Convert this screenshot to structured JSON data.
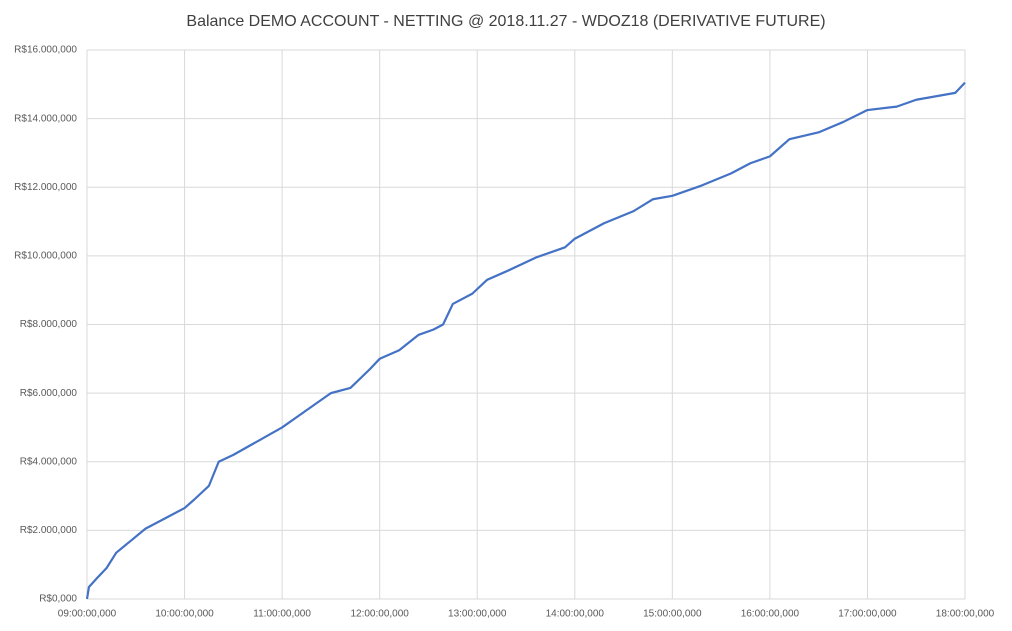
{
  "chart_data": {
    "type": "line",
    "title": "Balance DEMO ACCOUNT - NETTING @ 2018.11.27 - WDOZ18 (DERIVATIVE FUTURE)",
    "x": [
      9.0,
      9.02,
      9.1,
      9.2,
      9.3,
      9.45,
      9.6,
      9.8,
      10.0,
      10.1,
      10.25,
      10.35,
      10.5,
      10.75,
      11.0,
      11.25,
      11.5,
      11.7,
      11.9,
      12.0,
      12.2,
      12.4,
      12.55,
      12.65,
      12.75,
      12.95,
      13.1,
      13.3,
      13.6,
      13.9,
      14.0,
      14.3,
      14.6,
      14.8,
      15.0,
      15.3,
      15.6,
      15.8,
      16.0,
      16.2,
      16.5,
      16.75,
      17.0,
      17.3,
      17.5,
      17.9,
      18.0
    ],
    "series": [
      {
        "name": "Balance",
        "color": "#4472c4",
        "values": [
          0,
          350000,
          600000,
          900000,
          1350000,
          1700000,
          2050000,
          2350000,
          2650000,
          2900000,
          3300000,
          4000000,
          4200000,
          4600000,
          5000000,
          5500000,
          6000000,
          6150000,
          6700000,
          7000000,
          7250000,
          7700000,
          7850000,
          8000000,
          8600000,
          8900000,
          9300000,
          9550000,
          9950000,
          10250000,
          10500000,
          10950000,
          11300000,
          11650000,
          11750000,
          12050000,
          12400000,
          12700000,
          12900000,
          13400000,
          13600000,
          13900000,
          14250000,
          14350000,
          14550000,
          14750000,
          15050000
        ]
      }
    ],
    "xlim": [
      9,
      18
    ],
    "xticks": [
      {
        "value": 9,
        "label": "09:00:00,000"
      },
      {
        "value": 10,
        "label": "10:00:00,000"
      },
      {
        "value": 11,
        "label": "11:00:00,000"
      },
      {
        "value": 12,
        "label": "12:00:00,000"
      },
      {
        "value": 13,
        "label": "13:00:00,000"
      },
      {
        "value": 14,
        "label": "14:00:00,000"
      },
      {
        "value": 15,
        "label": "15:00:00,000"
      },
      {
        "value": 16,
        "label": "16:00:00,000"
      },
      {
        "value": 17,
        "label": "17:00:00,000"
      },
      {
        "value": 18,
        "label": "18:00:00,000"
      }
    ],
    "ylim": [
      0,
      16000000
    ],
    "yticks": [
      {
        "value": 0,
        "label": "R$0,000"
      },
      {
        "value": 2000000,
        "label": "R$2.000,000"
      },
      {
        "value": 4000000,
        "label": "R$4.000,000"
      },
      {
        "value": 6000000,
        "label": "R$6.000,000"
      },
      {
        "value": 8000000,
        "label": "R$8.000,000"
      },
      {
        "value": 10000000,
        "label": "R$10.000,000"
      },
      {
        "value": 12000000,
        "label": "R$12.000,000"
      },
      {
        "value": 14000000,
        "label": "R$14.000,000"
      },
      {
        "value": 16000000,
        "label": "R$16.000,000"
      }
    ],
    "grid": true
  }
}
